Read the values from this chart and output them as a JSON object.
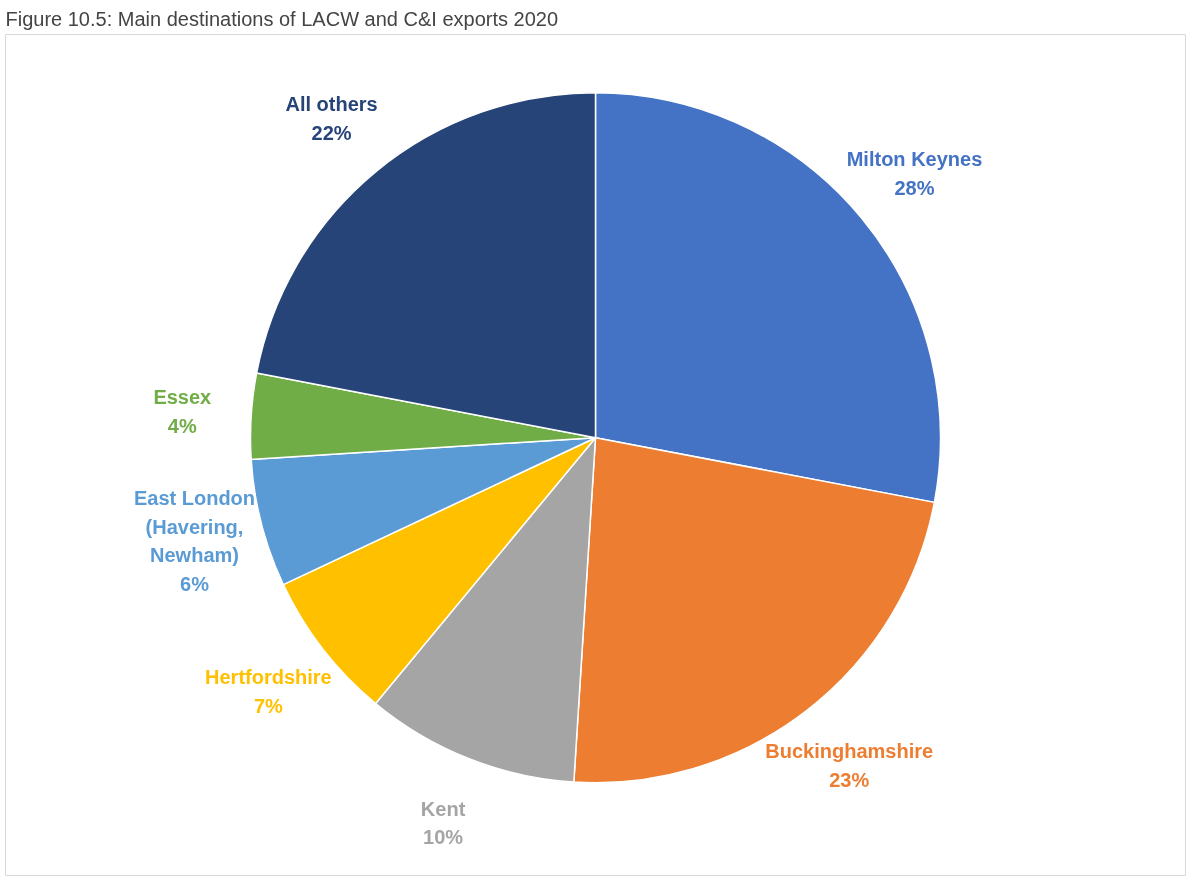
{
  "chart_data": {
    "type": "pie",
    "title": "Figure 10.5: Main destinations of LACW and C&I exports 2020",
    "categories": [
      "Milton Keynes",
      "Buckinghamshire",
      "Kent",
      "Hertfordshire",
      "East London (Havering, Newham)",
      "Essex",
      "All others"
    ],
    "values": [
      28,
      23,
      10,
      7,
      6,
      4,
      22
    ],
    "value_labels": [
      "28%",
      "23%",
      "10%",
      "7%",
      "6%",
      "4%",
      "22%"
    ],
    "colors": [
      "#4472c4",
      "#ed7d31",
      "#a5a5a5",
      "#ffc000",
      "#5b9bd5",
      "#70ad47",
      "#264478"
    ],
    "legend": false
  }
}
